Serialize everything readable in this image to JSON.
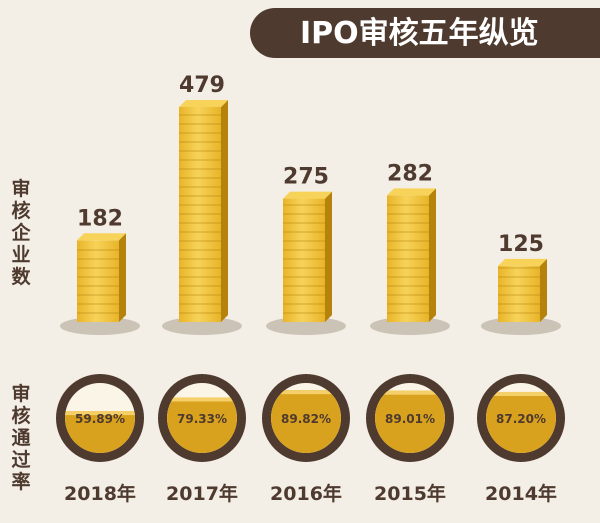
{
  "title": "IPO审核五年纵览",
  "ylabel_count": "审核企业数",
  "ylabel_rate": "审核通过率",
  "chart_data": {
    "type": "bar",
    "title": "IPO审核五年纵览",
    "ylabel": "审核企业数",
    "categories": [
      "2018年",
      "2017年",
      "2016年",
      "2015年",
      "2014年"
    ],
    "values": [
      182,
      479,
      275,
      282,
      125
    ],
    "pass_rate_label": "审核通过率",
    "pass_rates": [
      "59.89%",
      "79.33%",
      "89.82%",
      "89.01%",
      "87.20%"
    ],
    "pass_rate_values": [
      59.89,
      79.33,
      89.82,
      89.01,
      87.2
    ]
  },
  "colors": {
    "banner": "#4e3a2e",
    "text": "#4e3a2e",
    "gold_light": "#f7d35a",
    "gold_mid": "#e8b428",
    "gold_dark": "#b5820c",
    "ring": "#4e3a2e",
    "liquid": "#d9a21e",
    "shadow": "#bbb0a2"
  }
}
